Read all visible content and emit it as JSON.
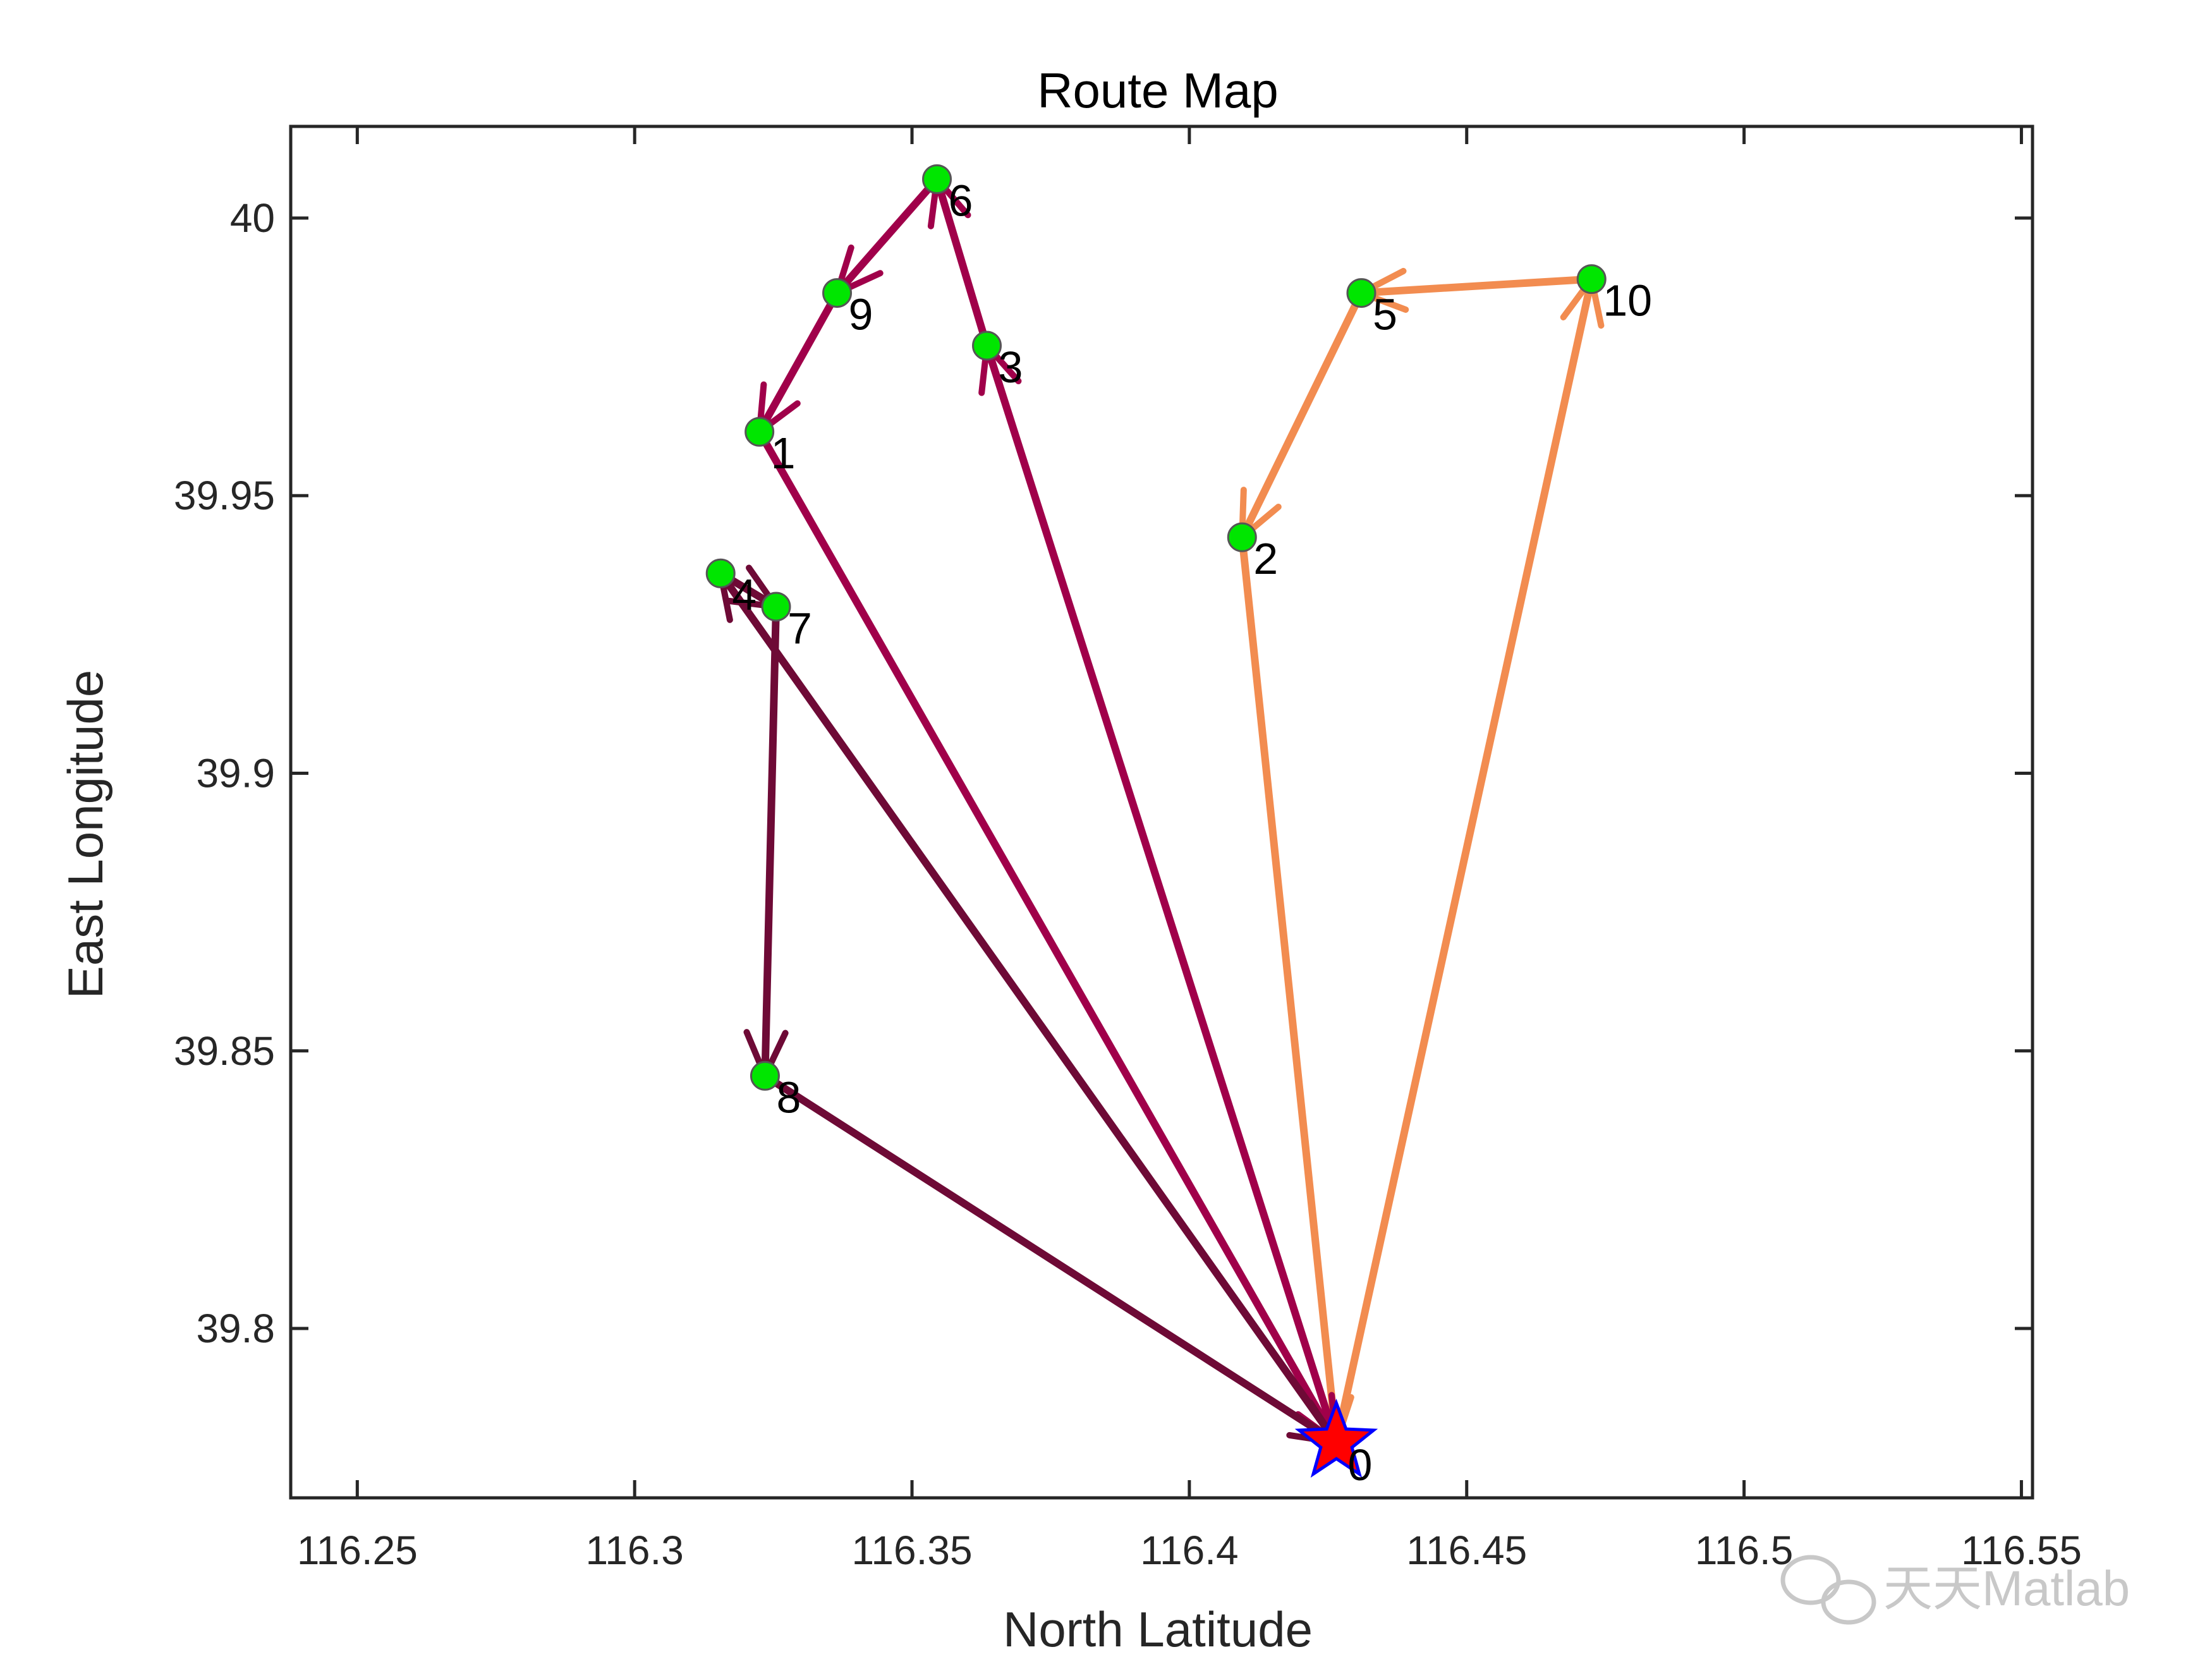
{
  "chart_data": {
    "type": "line",
    "title": "Route Map",
    "xlabel": "North Latitude",
    "ylabel": "East Longitude",
    "xlim": [
      116.238,
      116.552
    ],
    "ylim": [
      39.7695,
      40.0165
    ],
    "xticks": [
      116.25,
      116.3,
      116.35,
      116.4,
      116.45,
      116.5,
      116.55
    ],
    "xtick_labels": [
      "116.25",
      "116.3",
      "116.35",
      "116.4",
      "116.45",
      "116.5",
      "116.55"
    ],
    "yticks": [
      39.8,
      39.85,
      39.9,
      39.95,
      40.0
    ],
    "ytick_labels": [
      "39.8",
      "39.85",
      "39.9",
      "39.95",
      "40"
    ],
    "grid": false,
    "depot": {
      "label": "0",
      "x": 116.4265,
      "y": 39.7795,
      "color": "#ff0000",
      "edge": "#0000ff"
    },
    "points": [
      {
        "label": "1",
        "x": 116.3225,
        "y": 39.9615
      },
      {
        "label": "2",
        "x": 116.4095,
        "y": 39.9425
      },
      {
        "label": "3",
        "x": 116.3635,
        "y": 39.977
      },
      {
        "label": "4",
        "x": 116.3155,
        "y": 39.936
      },
      {
        "label": "5",
        "x": 116.431,
        "y": 39.9865
      },
      {
        "label": "6",
        "x": 116.3545,
        "y": 40.007
      },
      {
        "label": "7",
        "x": 116.3255,
        "y": 39.93
      },
      {
        "label": "8",
        "x": 116.3235,
        "y": 39.8455
      },
      {
        "label": "9",
        "x": 116.3365,
        "y": 39.9865
      },
      {
        "label": "10",
        "x": 116.4725,
        "y": 39.989
      }
    ],
    "point_color": "#00e600",
    "routes": [
      {
        "color": "#f28c50",
        "stops": [
          0,
          10,
          5,
          2,
          0
        ]
      },
      {
        "color": "#a0004a",
        "stops": [
          0,
          3,
          6,
          9,
          1,
          0
        ]
      },
      {
        "color": "#6e0a36",
        "stops": [
          0,
          4,
          7,
          8,
          0
        ]
      }
    ]
  },
  "watermark": "天天Matlab"
}
